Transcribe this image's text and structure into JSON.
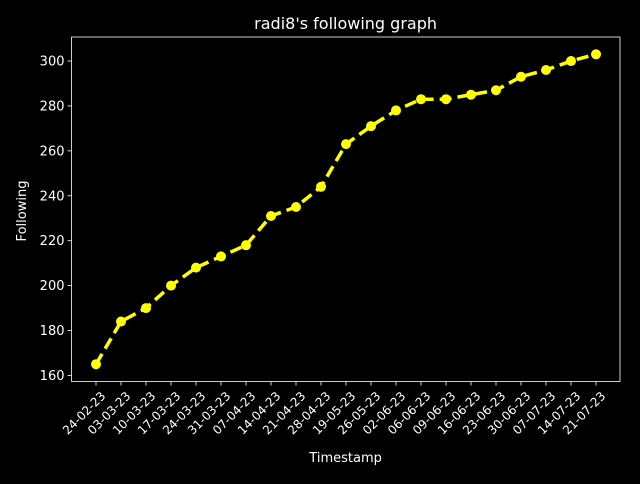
{
  "chart_data": {
    "type": "line",
    "title": "radi8's following graph",
    "xlabel": "Timestamp",
    "ylabel": "Following",
    "categories": [
      "24-02-23",
      "03-03-23",
      "10-03-23",
      "17-03-23",
      "24-03-23",
      "31-03-23",
      "07-04-23",
      "14-04-23",
      "21-04-23",
      "28-04-23",
      "19-05-23",
      "26-05-23",
      "02-06-23",
      "06-06-23",
      "09-06-23",
      "16-06-23",
      "23-06-23",
      "30-06-23",
      "07-07-23",
      "14-07-23",
      "21-07-23"
    ],
    "series": [
      {
        "values": [
          165,
          184,
          190,
          200,
          208,
          213,
          218,
          231,
          235,
          244,
          263,
          271,
          278,
          283,
          283,
          285,
          287,
          293,
          296,
          300,
          303
        ]
      }
    ],
    "ylim": [
      157.3,
      310.7
    ],
    "yticks": [
      160,
      180,
      200,
      220,
      240,
      260,
      280,
      300
    ],
    "grid": true,
    "style": {
      "background": "#000000",
      "foreground": "#ffffff",
      "line_color": "#ffff00",
      "grid_color": "#b0b0b0"
    }
  }
}
